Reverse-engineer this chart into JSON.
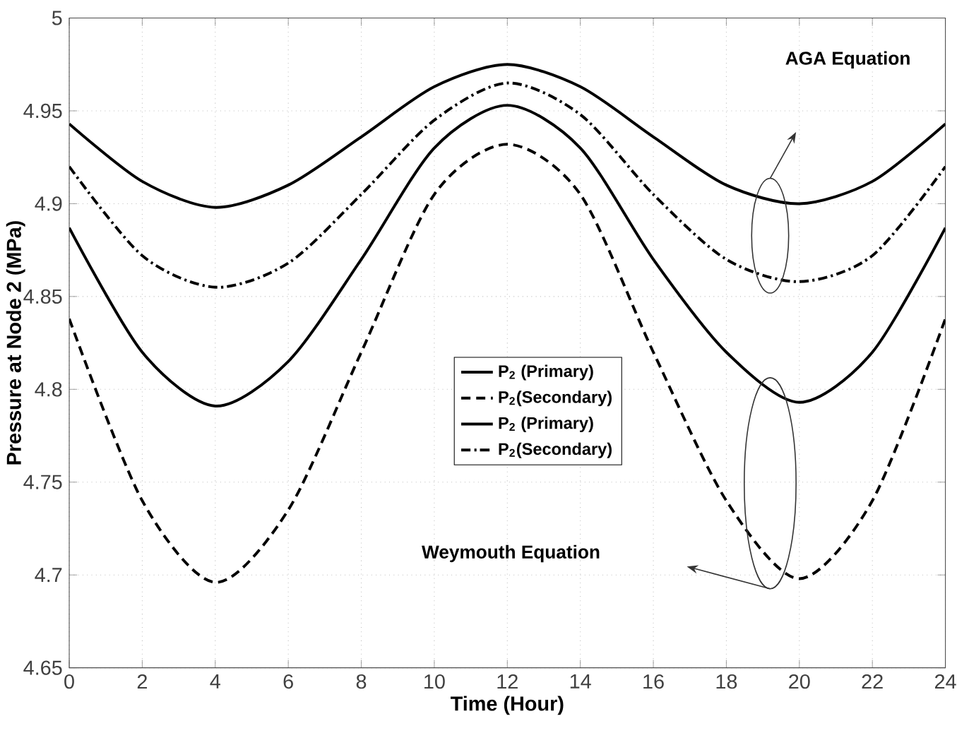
{
  "chart_data": {
    "type": "line",
    "xlabel": "Time (Hour)",
    "ylabel": "Pressure at Node 2 (MPa)",
    "x": [
      0,
      2,
      4,
      6,
      8,
      10,
      12,
      14,
      16,
      18,
      20,
      22,
      24
    ],
    "series": [
      {
        "name": "P$_{2}$ (Primary)",
        "color": "#000000",
        "line_style": "solid",
        "values": [
          4.887,
          4.82,
          4.791,
          4.815,
          4.87,
          4.93,
          4.953,
          4.93,
          4.87,
          4.82,
          4.793,
          4.82,
          4.887
        ]
      },
      {
        "name": "P$_{2}$(Secondary)",
        "color": "#000000",
        "line_style": "dashed",
        "values": [
          4.838,
          4.74,
          4.696,
          4.735,
          4.82,
          4.905,
          4.932,
          4.905,
          4.82,
          4.74,
          4.698,
          4.74,
          4.838
        ]
      },
      {
        "name": "P$_{2}$ (Primary)",
        "color": "#000000",
        "line_style": "solid",
        "values": [
          4.943,
          4.912,
          4.898,
          4.91,
          4.936,
          4.963,
          4.975,
          4.963,
          4.936,
          4.91,
          4.9,
          4.912,
          4.943
        ]
      },
      {
        "name": "P$_{2}$(Secondary)",
        "color": "#000000",
        "line_style": "dashdot",
        "values": [
          4.92,
          4.872,
          4.855,
          4.868,
          4.905,
          4.945,
          4.965,
          4.948,
          4.905,
          4.87,
          4.858,
          4.872,
          4.92
        ]
      }
    ],
    "xlim": [
      0,
      24
    ],
    "xticks": [
      0,
      2,
      4,
      6,
      8,
      10,
      12,
      14,
      16,
      18,
      20,
      22,
      24
    ],
    "ylim": [
      4.65,
      5
    ],
    "yticks": [
      4.65,
      4.7,
      4.75,
      4.8,
      4.85,
      4.9,
      4.95,
      5
    ],
    "grid": true,
    "legend": "center",
    "marker": "none",
    "annotations": [
      "AGA Equation",
      "Weymouth Equation"
    ]
  }
}
